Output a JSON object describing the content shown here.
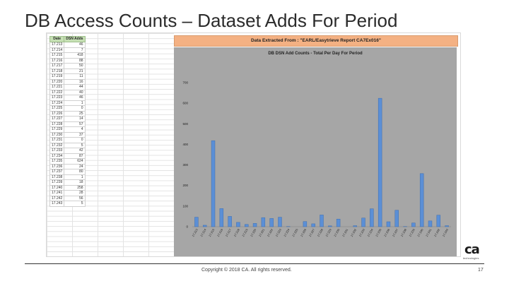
{
  "slide": {
    "title": "DB Access Counts – Dataset Adds For Period",
    "footer": "Copyright © 2018 CA. All rights reserved.",
    "page_number": "17",
    "logo_text": "ca",
    "logo_sub": "technologies"
  },
  "spreadsheet": {
    "headers": [
      "Date",
      "DSN Adds"
    ],
    "rows": [
      [
        "17.213",
        "46"
      ],
      [
        "17.214",
        "7"
      ],
      [
        "17.215",
        "418"
      ],
      [
        "17.216",
        "88"
      ],
      [
        "17.217",
        "50"
      ],
      [
        "17.218",
        "21"
      ],
      [
        "17.219",
        "11"
      ],
      [
        "17.220",
        "16"
      ],
      [
        "17.221",
        "44"
      ],
      [
        "17.222",
        "40"
      ],
      [
        "17.223",
        "46"
      ],
      [
        "17.224",
        "1"
      ],
      [
        "17.225",
        "0"
      ],
      [
        "17.226",
        "25"
      ],
      [
        "17.227",
        "14"
      ],
      [
        "17.228",
        "57"
      ],
      [
        "17.229",
        "4"
      ],
      [
        "17.230",
        "37"
      ],
      [
        "17.231",
        "0"
      ],
      [
        "17.232",
        "5"
      ],
      [
        "17.233",
        "42"
      ],
      [
        "17.234",
        "87"
      ],
      [
        "17.235",
        "624"
      ],
      [
        "17.236",
        "24"
      ],
      [
        "17.237",
        "80"
      ],
      [
        "17.238",
        "1"
      ],
      [
        "17.239",
        "18"
      ],
      [
        "17.240",
        "258"
      ],
      [
        "17.241",
        "28"
      ],
      [
        "17.242",
        "56"
      ],
      [
        "17.243",
        "5"
      ]
    ]
  },
  "banner": "Data Extracted From  :  \"EARL/Easytrieve Report CA7Ex016\"",
  "chart_data": {
    "type": "bar",
    "title": "DB DSN Add Counts - Total Per Day For Period",
    "categories": [
      "17.213",
      "17.214",
      "17.215",
      "17.216",
      "17.217",
      "17.218",
      "17.219",
      "17.220",
      "17.221",
      "17.222",
      "17.223",
      "17.224",
      "17.225",
      "17.226",
      "17.227",
      "17.228",
      "17.229",
      "17.230",
      "17.231",
      "17.232",
      "17.233",
      "17.234",
      "17.235",
      "17.236",
      "17.237",
      "17.238",
      "17.239",
      "17.240",
      "17.241",
      "17.242",
      "17.243"
    ],
    "values": [
      46,
      7,
      418,
      88,
      50,
      21,
      11,
      16,
      44,
      40,
      46,
      1,
      0,
      25,
      14,
      57,
      4,
      37,
      0,
      5,
      42,
      87,
      624,
      24,
      80,
      1,
      18,
      258,
      28,
      56,
      5
    ],
    "ylim": [
      0,
      700
    ],
    "yticks": [
      "0",
      "100",
      "200",
      "300",
      "400",
      "500",
      "600",
      "700"
    ],
    "grid": false,
    "bar_color": "#5b8fd6",
    "background_color": "#a6a6a6"
  }
}
